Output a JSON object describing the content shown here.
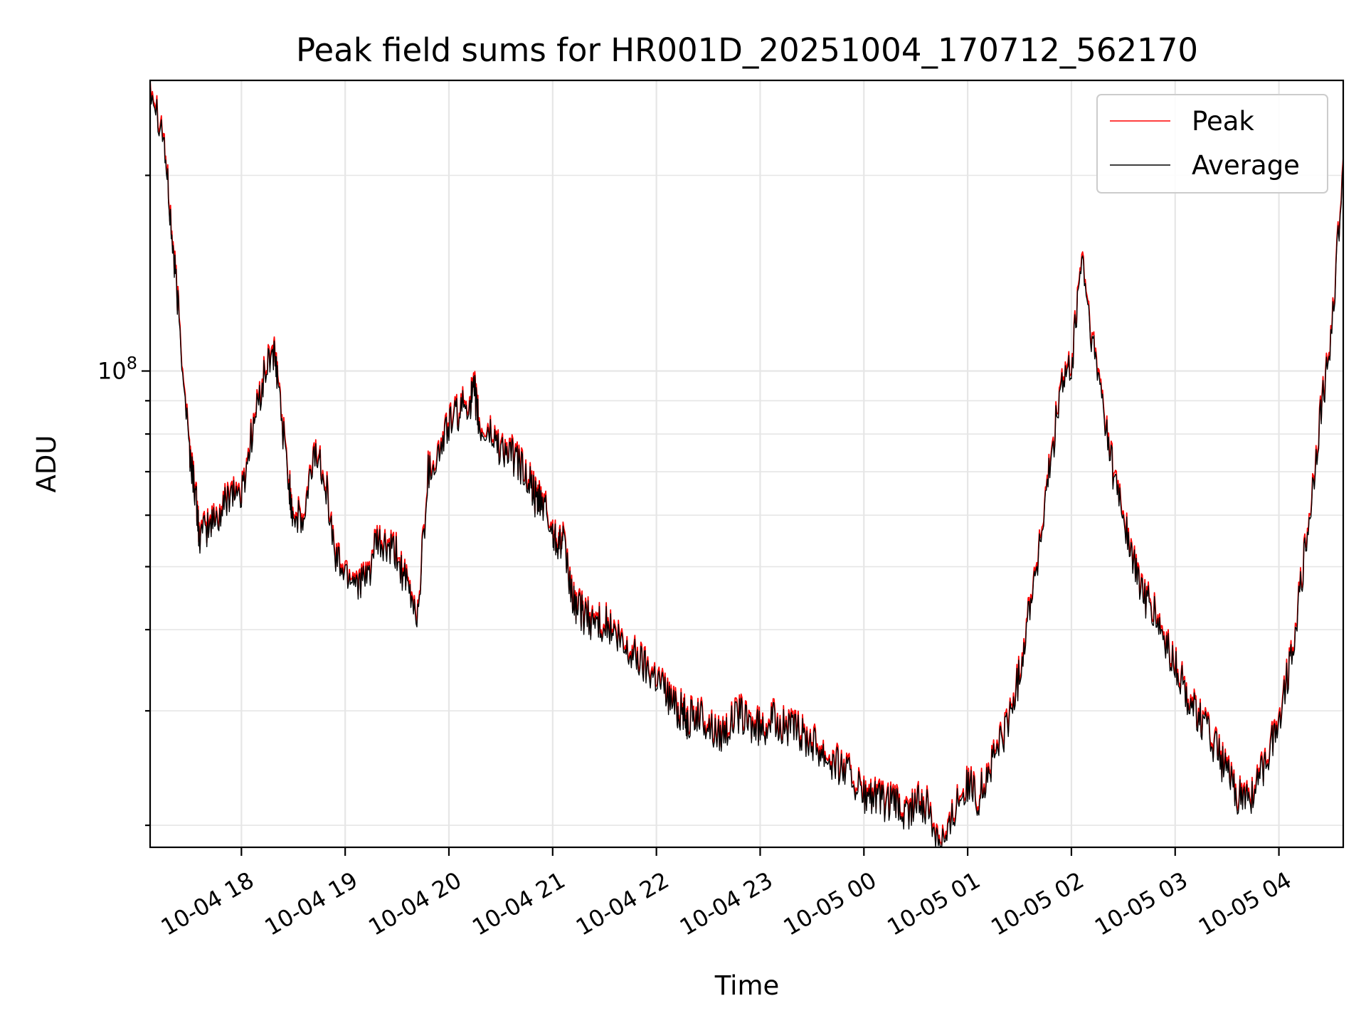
{
  "chart_data": {
    "type": "line",
    "title": "Peak field sums for HR001D_20251004_170712_562170",
    "xlabel": "Time",
    "ylabel": "ADU",
    "yscale": "log",
    "ylim": [
      18500000,
      280000000
    ],
    "xlim_hours": [
      17.12,
      28.62
    ],
    "grid": true,
    "legend_position": "top-right",
    "x_tick_labels": [
      {
        "label": "10-04 18",
        "hour": 18
      },
      {
        "label": "10-04 19",
        "hour": 19
      },
      {
        "label": "10-04 20",
        "hour": 20
      },
      {
        "label": "10-04 21",
        "hour": 21
      },
      {
        "label": "10-04 22",
        "hour": 22
      },
      {
        "label": "10-04 23",
        "hour": 23
      },
      {
        "label": "10-05 00",
        "hour": 24
      },
      {
        "label": "10-05 01",
        "hour": 25
      },
      {
        "label": "10-05 02",
        "hour": 26
      },
      {
        "label": "10-05 03",
        "hour": 27
      },
      {
        "label": "10-05 04",
        "hour": 28
      }
    ],
    "y_major_ticks": [
      {
        "value": 100000000,
        "base": "10",
        "exponent": "8"
      }
    ],
    "y_minor_ticks": [
      20000000,
      30000000,
      40000000,
      50000000,
      60000000,
      70000000,
      80000000,
      90000000,
      200000000
    ],
    "x": [
      17.12,
      17.25,
      17.33,
      17.4,
      17.5,
      17.55,
      17.6,
      17.7,
      17.8,
      17.9,
      18.0,
      18.1,
      18.2,
      18.3,
      18.35,
      18.45,
      18.5,
      18.6,
      18.7,
      18.8,
      18.9,
      19.0,
      19.1,
      19.2,
      19.3,
      19.4,
      19.5,
      19.6,
      19.7,
      19.8,
      19.9,
      20.0,
      20.1,
      20.2,
      20.25,
      20.3,
      20.4,
      20.5,
      20.6,
      20.7,
      20.8,
      20.85,
      20.9,
      21.0,
      21.05,
      21.1,
      21.2,
      21.25,
      21.3,
      21.4,
      21.5,
      21.6,
      21.7,
      21.8,
      21.9,
      22.0,
      22.1,
      22.2,
      22.25,
      22.3,
      22.4,
      22.5,
      22.6,
      22.7,
      22.8,
      22.9,
      23.0,
      23.1,
      23.2,
      23.3,
      23.4,
      23.5,
      23.6,
      23.7,
      23.8,
      23.9,
      24.0,
      24.1,
      24.2,
      24.3,
      24.4,
      24.5,
      24.6,
      24.7,
      24.8,
      24.9,
      25.0,
      25.1,
      25.2,
      25.3,
      25.4,
      25.5,
      25.6,
      25.7,
      25.8,
      25.9,
      26.0,
      26.1,
      26.2,
      26.3,
      26.4,
      26.5,
      26.6,
      26.7,
      26.8,
      26.9,
      27.0,
      27.1,
      27.2,
      27.3,
      27.4,
      27.5,
      27.6,
      27.7,
      27.8,
      27.9,
      28.0,
      28.1,
      28.2,
      28.3,
      28.4,
      28.5,
      28.62
    ],
    "series": [
      {
        "name": "Peak",
        "color": "#ff0000",
        "values": [
          280000000,
          230000000,
          160000000,
          120000000,
          75000000,
          66000000,
          55000000,
          58000000,
          60000000,
          66000000,
          64000000,
          80000000,
          95000000,
          108000000,
          97000000,
          68000000,
          60000000,
          58000000,
          75000000,
          70000000,
          52000000,
          49000000,
          48000000,
          47000000,
          54000000,
          53000000,
          52000000,
          46000000,
          42000000,
          70000000,
          74000000,
          83000000,
          86000000,
          90000000,
          92000000,
          80000000,
          80000000,
          76000000,
          74000000,
          71000000,
          66000000,
          62000000,
          63000000,
          56000000,
          55000000,
          54000000,
          44000000,
          43000000,
          42000000,
          41000000,
          41000000,
          39000000,
          37000000,
          36500000,
          35000000,
          34000000,
          32000000,
          30000000,
          30000000,
          29000000,
          29500000,
          28500000,
          27500000,
          28500000,
          29500000,
          28500000,
          28000000,
          29000000,
          28500000,
          28000000,
          27500000,
          27000000,
          26000000,
          25000000,
          24500000,
          23500000,
          22000000,
          22000000,
          21500000,
          21500000,
          20500000,
          21500000,
          21500000,
          19500000,
          19000000,
          22000000,
          23000000,
          22000000,
          24000000,
          26500000,
          29000000,
          34000000,
          44000000,
          54000000,
          72000000,
          95000000,
          100000000,
          150000000,
          110000000,
          90000000,
          70000000,
          60000000,
          50000000,
          45000000,
          42000000,
          38000000,
          35000000,
          32000000,
          30000000,
          28000000,
          26000000,
          24000000,
          22000000,
          22000000,
          23000000,
          26000000,
          29000000,
          35000000,
          45000000,
          60000000,
          85000000,
          110000000,
          210000000
        ]
      },
      {
        "name": "Average",
        "color": "#000000",
        "values": [
          280000000,
          230000000,
          160000000,
          120000000,
          75000000,
          66000000,
          55000000,
          58000000,
          60000000,
          66000000,
          64000000,
          80000000,
          95000000,
          108000000,
          97000000,
          68000000,
          60000000,
          58000000,
          75000000,
          70000000,
          52000000,
          49000000,
          48000000,
          47000000,
          54000000,
          53000000,
          52000000,
          46000000,
          42000000,
          70000000,
          74000000,
          83000000,
          86000000,
          90000000,
          92000000,
          80000000,
          80000000,
          76000000,
          74000000,
          71000000,
          66000000,
          62000000,
          63000000,
          56000000,
          55000000,
          54000000,
          44000000,
          43000000,
          42000000,
          41000000,
          41000000,
          39000000,
          37000000,
          36500000,
          35000000,
          34000000,
          32000000,
          30000000,
          30000000,
          29000000,
          29500000,
          28500000,
          27500000,
          28500000,
          29500000,
          28500000,
          28000000,
          29000000,
          28500000,
          28000000,
          27500000,
          27000000,
          26000000,
          25000000,
          24500000,
          23500000,
          22000000,
          22000000,
          21500000,
          21500000,
          20500000,
          21500000,
          21500000,
          19500000,
          19000000,
          22000000,
          23000000,
          22000000,
          24000000,
          26500000,
          29000000,
          34000000,
          44000000,
          54000000,
          72000000,
          95000000,
          100000000,
          150000000,
          110000000,
          90000000,
          70000000,
          60000000,
          50000000,
          45000000,
          42000000,
          38000000,
          35000000,
          32000000,
          30000000,
          28000000,
          26000000,
          24000000,
          22000000,
          22000000,
          23000000,
          26000000,
          29000000,
          35000000,
          45000000,
          60000000,
          85000000,
          110000000,
          210000000
        ]
      }
    ]
  }
}
